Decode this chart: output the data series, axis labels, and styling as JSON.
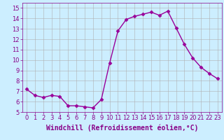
{
  "x": [
    0,
    1,
    2,
    3,
    4,
    5,
    6,
    7,
    8,
    9,
    10,
    11,
    12,
    13,
    14,
    15,
    16,
    17,
    18,
    19,
    20,
    21,
    22,
    23
  ],
  "y": [
    7.2,
    6.6,
    6.4,
    6.6,
    6.5,
    5.6,
    5.6,
    5.5,
    5.4,
    6.2,
    9.7,
    12.8,
    13.9,
    14.2,
    14.4,
    14.6,
    14.3,
    14.7,
    13.1,
    11.5,
    10.2,
    9.3,
    8.7,
    8.2
  ],
  "line_color": "#990099",
  "marker": "D",
  "markersize": 2.5,
  "linewidth": 1.0,
  "bg_color": "#cceeff",
  "grid_color": "#b0b0b0",
  "xlabel": "Windchill (Refroidissement éolien,°C)",
  "xlabel_fontsize": 7.0,
  "xlabel_color": "#880088",
  "yticks": [
    5,
    6,
    7,
    8,
    9,
    10,
    11,
    12,
    13,
    14,
    15
  ],
  "xticks": [
    0,
    1,
    2,
    3,
    4,
    5,
    6,
    7,
    8,
    9,
    10,
    11,
    12,
    13,
    14,
    15,
    16,
    17,
    18,
    19,
    20,
    21,
    22,
    23
  ],
  "ylim": [
    5,
    15.5
  ],
  "xlim": [
    -0.5,
    23.5
  ],
  "tick_fontsize": 6.0,
  "tick_color": "#880088",
  "spine_color": "#880088"
}
